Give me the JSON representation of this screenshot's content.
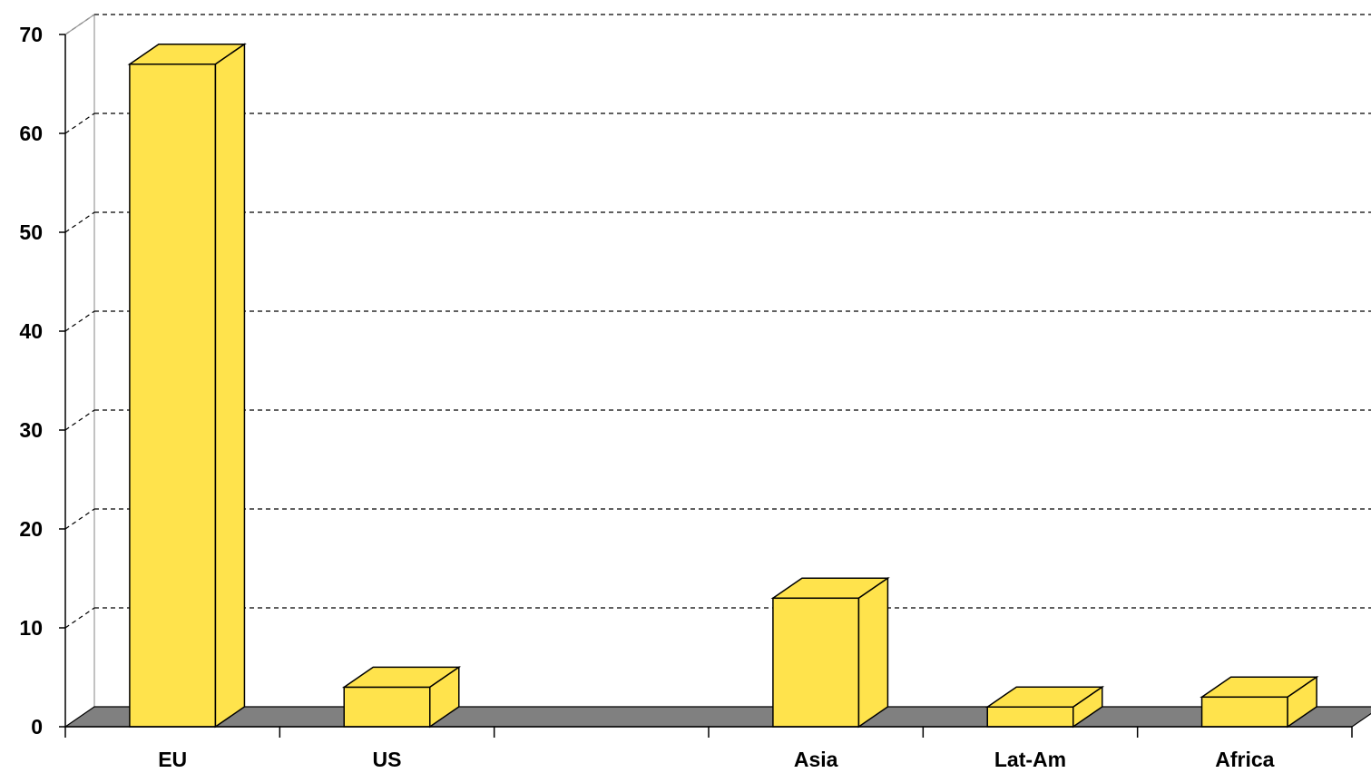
{
  "chart_data": {
    "type": "bar",
    "categories": [
      "EU",
      "US",
      "",
      "Asia",
      "Lat-Am",
      "Africa"
    ],
    "values": [
      67,
      4,
      0,
      13,
      2,
      3
    ],
    "ylim": [
      0,
      70
    ],
    "yticks": [
      0,
      10,
      20,
      30,
      40,
      50,
      60,
      70
    ],
    "title": "",
    "xlabel": "",
    "ylabel": "",
    "grid": true,
    "legend": "none",
    "three_d": true,
    "colors": {
      "bar": "#FFE34C",
      "floor": "#808080",
      "grid": "#000000"
    }
  }
}
